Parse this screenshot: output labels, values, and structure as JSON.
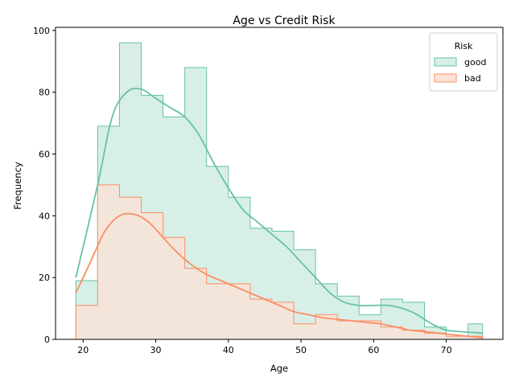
{
  "chart_data": {
    "type": "histogram",
    "title": "Age vs Credit Risk",
    "xlabel": "Age",
    "ylabel": "Frequency",
    "xlim": [
      16.2,
      77.8
    ],
    "ylim": [
      0,
      101
    ],
    "x_ticks": [
      20,
      30,
      40,
      50,
      60,
      70
    ],
    "y_ticks": [
      0,
      20,
      40,
      60,
      80,
      100
    ],
    "bin_edges": [
      19,
      22.0,
      25.0,
      28.0,
      31.0,
      34.0,
      37.0,
      40.0,
      43.0,
      46.0,
      49.0,
      52.0,
      55.0,
      58.0,
      61.0,
      64.0,
      67.0,
      70.0,
      73.0,
      75
    ],
    "legend": {
      "title": "Risk",
      "position": "top-right"
    },
    "series": [
      {
        "name": "good",
        "color": "#66c2a5",
        "fill": "#d7efe6",
        "counts": [
          19,
          69,
          96,
          79,
          72,
          88,
          56,
          46,
          36,
          35,
          29,
          18,
          14,
          8,
          13,
          12,
          4,
          1,
          5
        ],
        "kde": [
          [
            19,
            20
          ],
          [
            22,
            50
          ],
          [
            24,
            72
          ],
          [
            26,
            80
          ],
          [
            28,
            81
          ],
          [
            30,
            78
          ],
          [
            32,
            75
          ],
          [
            34,
            72
          ],
          [
            36,
            66
          ],
          [
            38,
            57
          ],
          [
            40,
            49
          ],
          [
            42,
            42
          ],
          [
            44,
            38
          ],
          [
            46,
            34
          ],
          [
            48,
            30
          ],
          [
            50,
            25
          ],
          [
            52,
            20
          ],
          [
            54,
            15
          ],
          [
            56,
            12
          ],
          [
            58,
            11
          ],
          [
            60,
            11
          ],
          [
            62,
            11
          ],
          [
            64,
            10
          ],
          [
            66,
            8
          ],
          [
            68,
            5
          ],
          [
            70,
            3
          ],
          [
            72,
            2.5
          ],
          [
            75,
            2
          ]
        ]
      },
      {
        "name": "bad",
        "color": "#fc8d62",
        "fill": "#fde2d6",
        "counts": [
          11,
          50,
          46,
          41,
          33,
          23,
          18,
          18,
          13,
          12,
          5,
          8,
          6,
          6,
          4,
          3,
          2,
          1,
          1
        ],
        "kde": [
          [
            19,
            15
          ],
          [
            21,
            25
          ],
          [
            23,
            35
          ],
          [
            25,
            40
          ],
          [
            27,
            40.5
          ],
          [
            29,
            38
          ],
          [
            31,
            33
          ],
          [
            33,
            28
          ],
          [
            35,
            24
          ],
          [
            37,
            21
          ],
          [
            39,
            19
          ],
          [
            41,
            17
          ],
          [
            43,
            15
          ],
          [
            45,
            13
          ],
          [
            47,
            11
          ],
          [
            49,
            9
          ],
          [
            51,
            8
          ],
          [
            53,
            7
          ],
          [
            55,
            6.5
          ],
          [
            57,
            6
          ],
          [
            59,
            5.5
          ],
          [
            61,
            5
          ],
          [
            63,
            4
          ],
          [
            65,
            3
          ],
          [
            67,
            2.5
          ],
          [
            69,
            2
          ],
          [
            71,
            1.5
          ],
          [
            73,
            1
          ],
          [
            75,
            0.5
          ]
        ]
      }
    ]
  }
}
